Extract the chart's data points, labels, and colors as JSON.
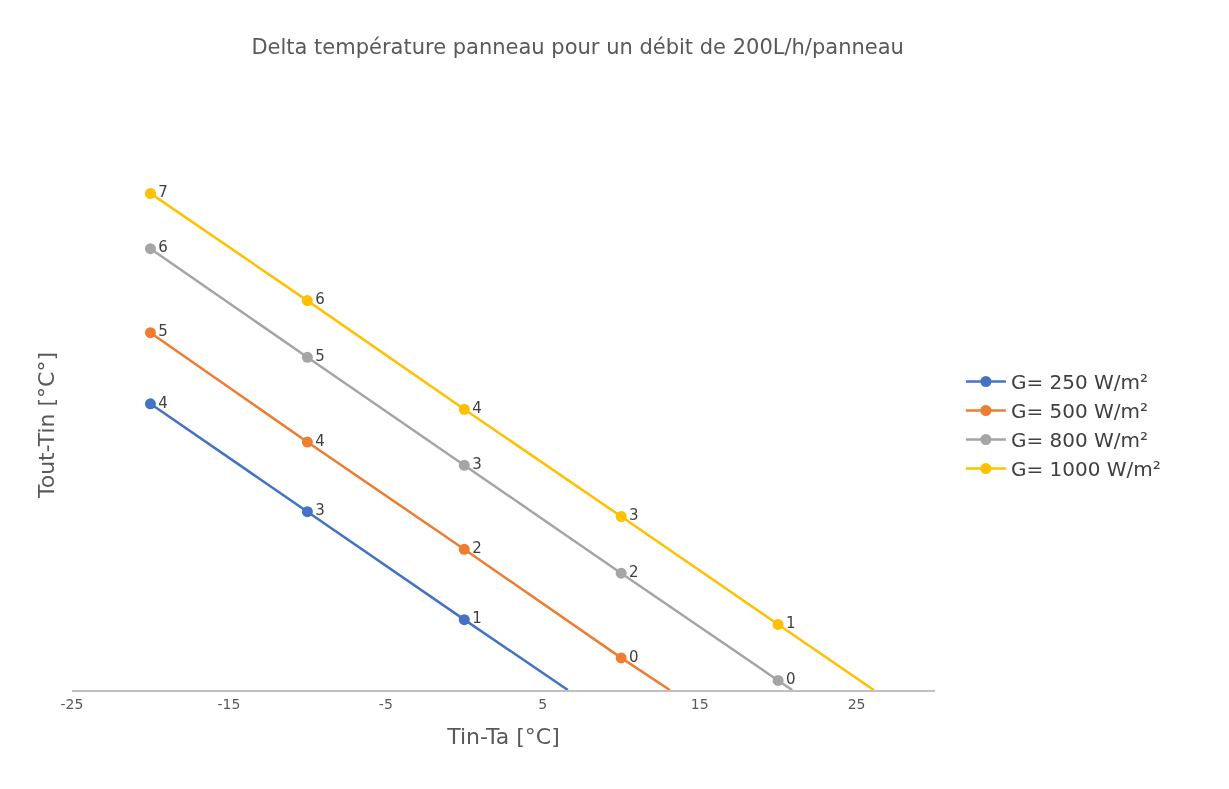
{
  "chart_data": {
    "type": "line",
    "title": "Delta température panneau pour un débit de 200L/h/panneau",
    "xlabel": "Tin-Ta [°C]",
    "ylabel": "Tout-Tin [°C°]",
    "xlim": [
      -25,
      30
    ],
    "xticks": [
      -25,
      -15,
      -5,
      5,
      15,
      25
    ],
    "tick_labels": "x",
    "grid": false,
    "legend": "right",
    "marker": "circle",
    "line_style": "solid",
    "series": [
      {
        "name": "G= 250 W/m²",
        "color": "#4472c4",
        "x": [
          -20,
          -10,
          0
        ],
        "values": [
          4.19,
          2.61,
          1.03
        ],
        "value_labels": [
          "4",
          "3",
          "1"
        ]
      },
      {
        "name": "G= 500 W/m²",
        "color": "#ed7d31",
        "x": [
          -20,
          -10,
          0,
          10
        ],
        "values": [
          5.23,
          3.63,
          2.06,
          0.47
        ],
        "value_labels": [
          "5",
          "4",
          "2",
          "0"
        ]
      },
      {
        "name": "G= 800 W/m²",
        "color": "#a5a5a5",
        "x": [
          -20,
          -10,
          0,
          10,
          20
        ],
        "values": [
          6.46,
          4.87,
          3.29,
          1.71,
          0.14
        ],
        "value_labels": [
          "6",
          "5",
          "3",
          "2",
          "0"
        ]
      },
      {
        "name": "G= 1000 W/m²",
        "color": "#ffc000",
        "x": [
          -20,
          -10,
          0,
          10,
          20
        ],
        "values": [
          7.27,
          5.7,
          4.11,
          2.54,
          0.96
        ],
        "value_labels": [
          "7",
          "6",
          "4",
          "3",
          "1"
        ]
      },
      {
        "color": "#4472c4",
        "marker": "none",
        "x": [
          0,
          6.6
        ],
        "values": [
          1.03,
          0
        ]
      },
      {
        "color": "#ed7d31",
        "marker": "none",
        "x": [
          10,
          13.1
        ],
        "values": [
          0.47,
          0
        ]
      },
      {
        "color": "#a5a5a5",
        "marker": "none",
        "x": [
          20,
          20.9
        ],
        "values": [
          0.14,
          0
        ]
      },
      {
        "color": "#ffc000",
        "marker": "none",
        "x": [
          20,
          26.1
        ],
        "values": [
          0.96,
          0
        ]
      }
    ]
  }
}
